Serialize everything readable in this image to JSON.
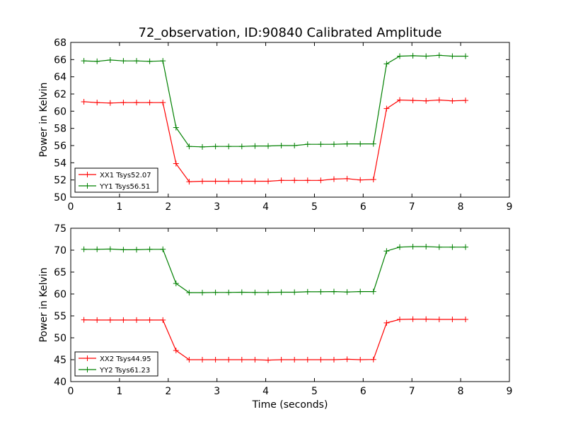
{
  "chart_data": [
    {
      "type": "line",
      "title": "72_observation, ID:90840 Calibrated Amplitude",
      "xlabel": "",
      "ylabel": "Power in Kelvin",
      "xlim": [
        0,
        9
      ],
      "ylim": [
        50,
        68
      ],
      "xticks": [
        0,
        1,
        2,
        3,
        4,
        5,
        6,
        7,
        8,
        9
      ],
      "yticks": [
        50,
        52,
        54,
        56,
        58,
        60,
        62,
        64,
        66,
        68
      ],
      "legend_position": "lower-left",
      "x": [
        0.27,
        0.54,
        0.81,
        1.08,
        1.35,
        1.62,
        1.89,
        2.16,
        2.43,
        2.7,
        2.97,
        3.24,
        3.51,
        3.78,
        4.05,
        4.32,
        4.59,
        4.86,
        5.13,
        5.4,
        5.67,
        5.94,
        6.21,
        6.48,
        6.75,
        7.02,
        7.29,
        7.56,
        7.83,
        8.1
      ],
      "series": [
        {
          "name": "XX1 Tsys52.07",
          "color": "#ff0000",
          "values": [
            61.1,
            61.0,
            60.95,
            61.0,
            61.0,
            61.0,
            61.0,
            53.9,
            51.8,
            51.85,
            51.85,
            51.85,
            51.85,
            51.85,
            51.85,
            51.95,
            51.95,
            51.95,
            51.95,
            52.1,
            52.15,
            52.0,
            52.05,
            60.3,
            61.3,
            61.25,
            61.2,
            61.3,
            61.2,
            61.25
          ]
        },
        {
          "name": "YY1 Tsys56.51",
          "color": "#008000",
          "values": [
            65.85,
            65.8,
            65.95,
            65.85,
            65.85,
            65.8,
            65.85,
            58.1,
            55.9,
            55.85,
            55.9,
            55.9,
            55.9,
            55.95,
            55.95,
            56.0,
            56.0,
            56.15,
            56.15,
            56.15,
            56.2,
            56.2,
            56.2,
            65.5,
            66.4,
            66.45,
            66.4,
            66.5,
            66.4,
            66.4
          ]
        }
      ]
    },
    {
      "type": "line",
      "title": "",
      "xlabel": "Time (seconds)",
      "ylabel": "Power in Kelvin",
      "xlim": [
        0,
        9
      ],
      "ylim": [
        40,
        75
      ],
      "xticks": [
        0,
        1,
        2,
        3,
        4,
        5,
        6,
        7,
        8,
        9
      ],
      "yticks": [
        40,
        45,
        50,
        55,
        60,
        65,
        70,
        75
      ],
      "legend_position": "lower-left",
      "x": [
        0.27,
        0.54,
        0.81,
        1.08,
        1.35,
        1.62,
        1.89,
        2.16,
        2.43,
        2.7,
        2.97,
        3.24,
        3.51,
        3.78,
        4.05,
        4.32,
        4.59,
        4.86,
        5.13,
        5.4,
        5.67,
        5.94,
        6.21,
        6.48,
        6.75,
        7.02,
        7.29,
        7.56,
        7.83,
        8.1
      ],
      "series": [
        {
          "name": "XX2 Tsys44.95",
          "color": "#ff0000",
          "values": [
            54.1,
            54.05,
            54.05,
            54.05,
            54.05,
            54.05,
            54.05,
            47.1,
            45.0,
            45.0,
            45.0,
            45.0,
            45.0,
            45.0,
            44.9,
            45.0,
            45.0,
            45.0,
            45.0,
            45.0,
            45.1,
            45.0,
            45.05,
            53.4,
            54.2,
            54.25,
            54.25,
            54.2,
            54.2,
            54.2
          ]
        },
        {
          "name": "YY2 Tsys61.23",
          "color": "#008000",
          "values": [
            70.2,
            70.2,
            70.25,
            70.1,
            70.1,
            70.2,
            70.2,
            62.4,
            60.3,
            60.3,
            60.35,
            60.35,
            60.4,
            60.35,
            60.35,
            60.4,
            60.4,
            60.5,
            60.5,
            60.55,
            60.45,
            60.55,
            60.55,
            69.8,
            70.7,
            70.8,
            70.8,
            70.7,
            70.7,
            70.7
          ]
        }
      ]
    }
  ]
}
